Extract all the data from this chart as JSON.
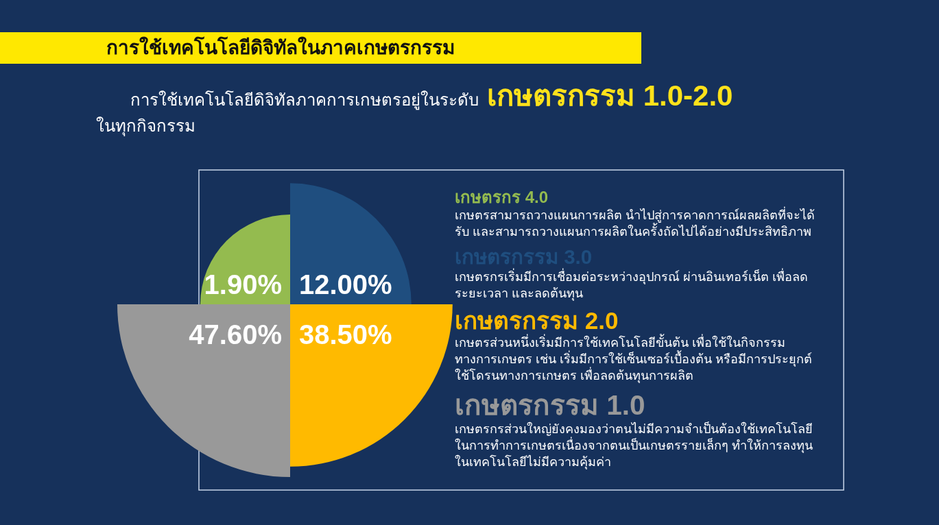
{
  "chart_data": {
    "type": "other",
    "title": "การใช้เทคโนโลยีดิจิทัลในภาคเกษตรกรรม",
    "subtitle": "การใช้เทคโนโลยีดิจิทัลภาคการเกษตรอยู่ในระดับ",
    "categories": [
      "เกษตรกร 4.0",
      "เกษตรกรรม 3.0",
      "เกษตรกรรม 2.0",
      "เกษตรกรรม 1.0"
    ],
    "values": [
      1.9,
      12,
      38.5,
      47.6
    ],
    "value_labels": [
      "1.90%",
      "12.00%",
      "38.50%",
      "47.60%"
    ],
    "colors": [
      "#94bb4f",
      "#1f4e7f",
      "#ffba00",
      "#999999"
    ],
    "annotations": [
      "เกษตรกรรม 1.0-2.0",
      "ในทุกกิจกรรม",
      "เกษตรสามารถวางแผนการผลิต นำไปสู่การคาดการณ์ผลผลิตที่จะได้รับ และสามารถวางแผนการผลิตในครั้งถัดไปได้อย่างมีประสิทธิภาพ",
      "เกษตรกรเริ่มมีการเชื่อมต่อระหว่างอุปกรณ์ ผ่านอินเทอร์เน็ต เพื่อลดระยะเวลา และลดต้นทุน",
      "เกษตรส่วนหนึ่งเริ่มมีการใช้เทคโนโลยีขั้นต้น เพื่อใช้ในกิจกรรมทางการเกษตร เช่น เริ่มมีการใช้เซ็นเซอร์เบื้องต้น หรือมีการประยุกต์ใช้โดรนทางการเกษตร เพื่อลดต้นทุนการผลิต",
      "เกษตรกรส่วนใหญ่ยังคงมองว่าตนไม่มีความจำเป็นต้องใช้เทคโนโลยีในการทำการเกษตรเนื่องจากตนเป็นเกษตรรายเล็กๆ ทำให้การลงทุนในเทคโนโลยีไม่มีความคุ้มค่า"
    ]
  }
}
